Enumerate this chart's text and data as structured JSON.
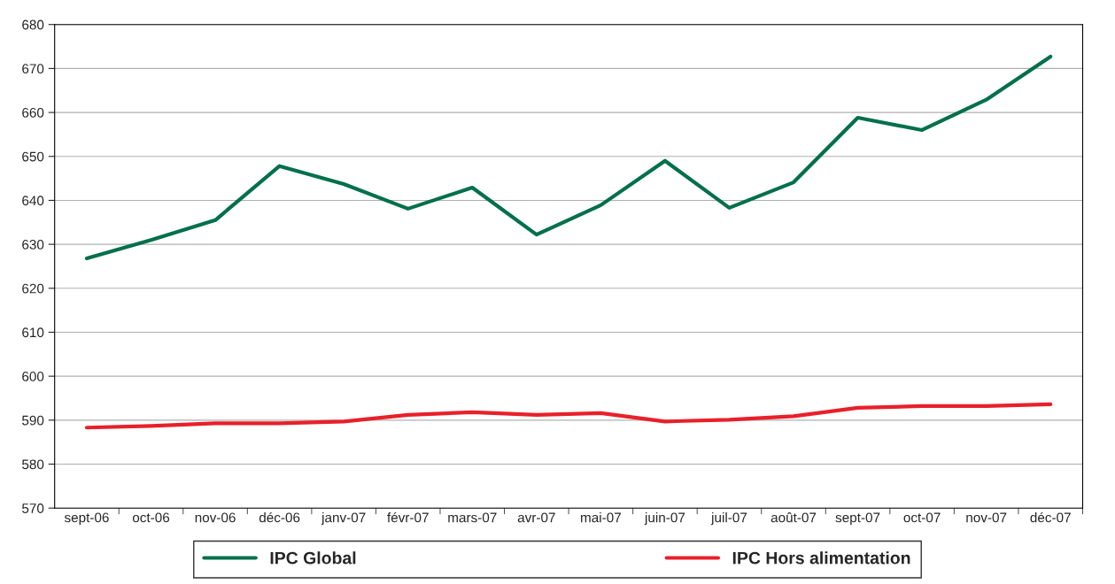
{
  "chart_data": {
    "type": "line",
    "categories": [
      "sept-06",
      "oct-06",
      "nov-06",
      "déc-06",
      "janv-07",
      "févr-07",
      "mars-07",
      "avr-07",
      "mai-07",
      "juin-07",
      "juil-07",
      "août-07",
      "sept-07",
      "oct-07",
      "nov-07",
      "déc-07"
    ],
    "series": [
      {
        "name": "IPC Global",
        "color": "#00704a",
        "values": [
          626.8,
          631.0,
          635.5,
          647.8,
          643.7,
          638.1,
          642.9,
          632.2,
          638.9,
          649.0,
          638.3,
          644.1,
          658.8,
          656.0,
          662.9,
          672.7
        ]
      },
      {
        "name": "IPC Hors alimentation",
        "color": "#e8202a",
        "values": [
          588.3,
          588.7,
          589.3,
          589.3,
          589.7,
          591.2,
          591.8,
          591.2,
          591.6,
          589.7,
          590.1,
          590.9,
          592.8,
          593.2,
          593.2,
          593.6
        ]
      }
    ],
    "ylim": [
      570,
      680
    ],
    "yticks": [
      570,
      580,
      590,
      600,
      610,
      620,
      630,
      640,
      650,
      660,
      670,
      680
    ],
    "grid": "y",
    "legend": "bottom",
    "marker": "none",
    "line_style": "solid"
  }
}
